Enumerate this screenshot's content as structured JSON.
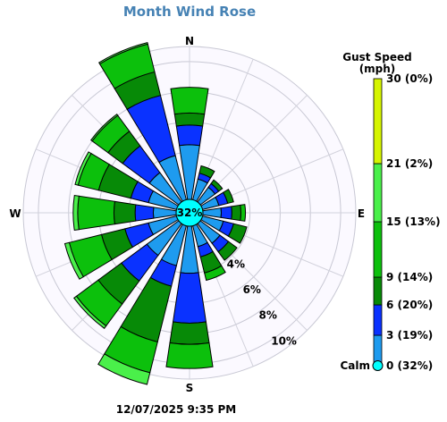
{
  "chart_data": {
    "type": "wind-rose",
    "title": "Month Wind Rose",
    "timestamp": "12/07/2025 9:35 PM",
    "calm_percent_label": "32%",
    "compass": {
      "north": "N",
      "east": "E",
      "south": "S",
      "west": "W"
    },
    "radial_axis": {
      "unit": "percent",
      "max": 11,
      "rings": [
        4,
        6,
        8,
        10
      ],
      "ring_labels": [
        "4%",
        "6%",
        "8%",
        "10%"
      ]
    },
    "legend": {
      "title_line1": "Gust Speed",
      "title_line2": "(mph)",
      "bins": [
        {
          "label": "Calm",
          "range_label": "0 (32%)",
          "color": "#00ffff"
        },
        {
          "label": "",
          "range_label": "3 (19%)",
          "color": "#1e9bef"
        },
        {
          "label": "",
          "range_label": "6 (20%)",
          "color": "#0a32ff"
        },
        {
          "label": "",
          "range_label": "9 (14%)",
          "color": "#078a07"
        },
        {
          "label": "",
          "range_label": "15 (13%)",
          "color": "#0cc00c"
        },
        {
          "label": "",
          "range_label": "21 (2%)",
          "color": "#4af04a"
        },
        {
          "label": "",
          "range_label": "30 (0%)",
          "color": "#d6f500"
        }
      ]
    },
    "directions": [
      {
        "dir": "N",
        "segments": [
          4.5,
          5.8,
          6.6,
          8.3
        ]
      },
      {
        "dir": "NNE",
        "segments": [
          2.3,
          2.7,
          3.2
        ]
      },
      {
        "dir": "NE",
        "segments": [
          2.1,
          2.4,
          2.7
        ]
      },
      {
        "dir": "ENE",
        "segments": [
          2.0,
          2.6,
          3.0
        ]
      },
      {
        "dir": "E",
        "segments": [
          2.1,
          2.8,
          3.4,
          3.7
        ]
      },
      {
        "dir": "ESE",
        "segments": [
          2.3,
          3.0,
          3.9
        ]
      },
      {
        "dir": "SE",
        "segments": [
          2.5,
          3.2,
          3.9
        ]
      },
      {
        "dir": "SSE",
        "segments": [
          2.3,
          3.0,
          4.1,
          4.6
        ]
      },
      {
        "dir": "S",
        "segments": [
          4.0,
          7.3,
          8.7,
          10.3
        ]
      },
      {
        "dir": "SSW",
        "segments": [
          3.6,
          5.0,
          8.8,
          10.9,
          11.7
        ]
      },
      {
        "dir": "SW",
        "segments": [
          3.5,
          5.6,
          7.5,
          9.3,
          9.5
        ]
      },
      {
        "dir": "WSW",
        "segments": [
          2.8,
          4.4,
          6.0,
          8.2,
          8.5
        ]
      },
      {
        "dir": "W",
        "segments": [
          2.4,
          3.6,
          5.0,
          7.4,
          7.7
        ]
      },
      {
        "dir": "WNW",
        "segments": [
          2.8,
          4.0,
          6.2,
          7.6,
          7.8
        ]
      },
      {
        "dir": "NW",
        "segments": [
          3.3,
          5.5,
          6.7,
          8.0,
          8.1
        ]
      },
      {
        "dir": "NNW",
        "segments": [
          3.9,
          8.0,
          9.6,
          11.5,
          11.6
        ]
      }
    ]
  }
}
